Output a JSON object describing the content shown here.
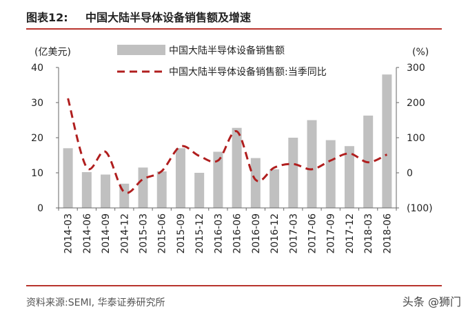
{
  "header": {
    "figure_label": "图表12:",
    "title": "中国大陆半导体设备销售额及增速"
  },
  "source_text": "资料来源:SEMI, 华泰证券研究所",
  "watermark_text": "头条 @狮门",
  "colors": {
    "accent_rule": "#b8332c",
    "bar": "#c0c0c0",
    "line": "#b01e1e"
  },
  "chart_data": {
    "type": "bar+line",
    "title": "",
    "categories": [
      "2014-03",
      "2014-06",
      "2014-09",
      "2014-12",
      "2015-03",
      "2015-06",
      "2015-09",
      "2015-12",
      "2016-03",
      "2016-06",
      "2016-09",
      "2016-12",
      "2017-03",
      "2017-06",
      "2017-09",
      "2017-12",
      "2018-03",
      "2018-06"
    ],
    "series": [
      {
        "name": "中国大陆半导体设备销售额",
        "type": "bar",
        "axis": "left",
        "values": [
          17.0,
          10.2,
          9.5,
          6.9,
          11.5,
          10.4,
          17.0,
          10.0,
          16.0,
          22.8,
          14.2,
          11.0,
          20.0,
          25.0,
          19.3,
          17.6,
          26.3,
          38.0
        ]
      },
      {
        "name": "中国大陆半导体设备销售额:当季同比",
        "type": "line",
        "style": "dashed",
        "axis": "right",
        "values": [
          212,
          15,
          60,
          -55,
          -18,
          5,
          75,
          48,
          35,
          118,
          -20,
          15,
          25,
          10,
          35,
          55,
          30,
          52
        ]
      }
    ],
    "left_axis": {
      "label": "(亿美元)",
      "ylim": [
        0,
        40
      ],
      "ticks": [
        "0",
        "10",
        "20",
        "30",
        "40"
      ]
    },
    "right_axis": {
      "label": "(%)",
      "ylim": [
        -100,
        300
      ],
      "ticks": [
        "(100)",
        "0",
        "100",
        "200",
        "300"
      ]
    },
    "legend_position": "top-center",
    "grid": false
  }
}
